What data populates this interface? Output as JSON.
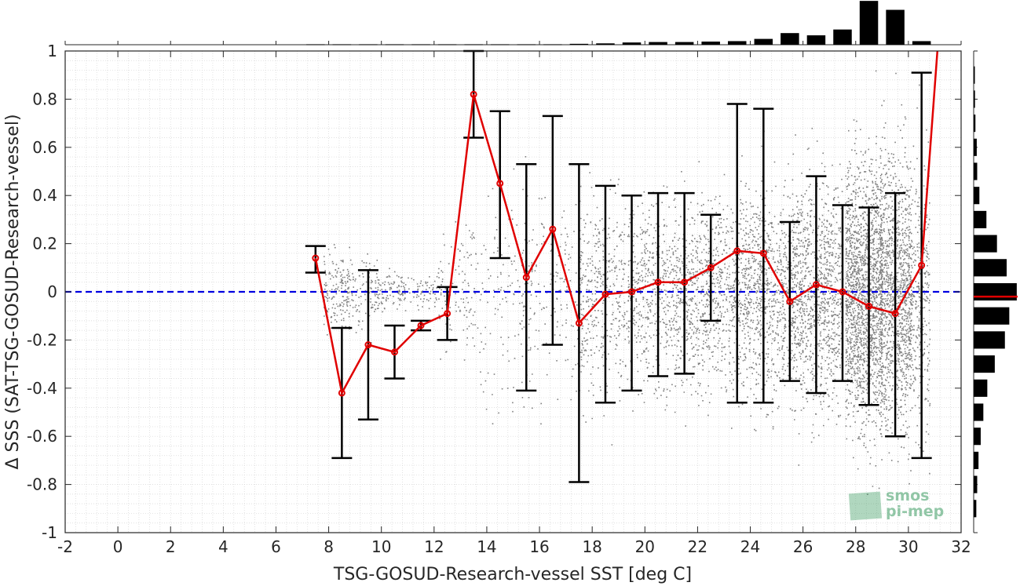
{
  "chart_data": {
    "type": "scatter",
    "xlabel": "TSG-GOSUD-Research-vessel SST [deg C]",
    "ylabel": "Δ SSS (SAT-TSG-GOSUD-Research-vessel)",
    "xlim": [
      -2,
      32
    ],
    "ylim": [
      -1,
      1
    ],
    "x_ticks": [
      -2,
      0,
      2,
      4,
      6,
      8,
      10,
      12,
      14,
      16,
      18,
      20,
      22,
      24,
      26,
      28,
      30,
      32
    ],
    "y_ticks": [
      -1,
      -0.8,
      -0.6,
      -0.4,
      -0.2,
      0,
      0.2,
      0.4,
      0.6,
      0.8,
      1
    ],
    "x_tick_labels": [
      "-2",
      "0",
      "2",
      "4",
      "6",
      "8",
      "10",
      "12",
      "14",
      "16",
      "18",
      "20",
      "22",
      "24",
      "26",
      "28",
      "30",
      "32"
    ],
    "y_tick_labels": [
      "-1",
      "-0.8",
      "-0.6",
      "-0.4",
      "-0.2",
      "0",
      "0.2",
      "0.4",
      "0.6",
      "0.8",
      "1"
    ],
    "grid": "minor dotted",
    "zero_line": {
      "y": 0,
      "style": "dashed",
      "color": "#0000e0"
    },
    "binned_mean": {
      "color": "#e00000",
      "x": [
        7.5,
        8.5,
        9.5,
        10.5,
        11.5,
        12.5,
        13.5,
        14.5,
        15.5,
        16.5,
        17.5,
        18.5,
        19.5,
        20.5,
        21.5,
        22.5,
        23.5,
        24.5,
        25.5,
        26.5,
        27.5,
        28.5,
        29.5,
        30.5,
        31.1
      ],
      "y": [
        0.14,
        -0.42,
        -0.22,
        -0.25,
        -0.14,
        -0.09,
        0.82,
        0.45,
        0.06,
        0.26,
        -0.13,
        -0.01,
        0.0,
        0.04,
        0.04,
        0.1,
        0.17,
        0.16,
        -0.04,
        0.03,
        0.0,
        -0.06,
        -0.09,
        0.11,
        1.0
      ]
    },
    "error_bars": {
      "color": "#000000",
      "x": [
        7.5,
        8.5,
        9.5,
        10.5,
        11.5,
        12.5,
        13.5,
        14.5,
        15.5,
        16.5,
        17.5,
        18.5,
        19.5,
        20.5,
        21.5,
        22.5,
        23.5,
        24.5,
        25.5,
        26.5,
        27.5,
        28.5,
        29.5,
        30.5
      ],
      "lower": [
        0.08,
        -0.69,
        -0.53,
        -0.36,
        -0.16,
        -0.2,
        0.64,
        0.14,
        -0.41,
        -0.22,
        -0.79,
        -0.46,
        -0.41,
        -0.35,
        -0.34,
        -0.12,
        -0.46,
        -0.46,
        -0.37,
        -0.42,
        -0.37,
        -0.47,
        -0.6,
        -0.69
      ],
      "upper": [
        0.19,
        -0.15,
        0.09,
        -0.14,
        -0.12,
        0.02,
        1.0,
        0.75,
        0.53,
        0.73,
        0.53,
        0.44,
        0.4,
        0.41,
        0.41,
        0.32,
        0.78,
        0.76,
        0.29,
        0.48,
        0.36,
        0.35,
        0.41,
        0.91
      ]
    },
    "scatter_color": "#808080",
    "hist_top": {
      "bins": [
        7.5,
        8.5,
        9.5,
        10.5,
        11.5,
        12.5,
        13.5,
        14.5,
        15.5,
        16.5,
        17.5,
        18.5,
        19.5,
        20.5,
        21.5,
        22.5,
        23.5,
        24.5,
        25.5,
        26.5,
        27.5,
        28.5,
        29.5,
        30.5
      ],
      "counts": [
        0.01,
        0.01,
        0.01,
        0.01,
        0.01,
        0.01,
        0.01,
        0.01,
        0.01,
        0.01,
        0.02,
        0.03,
        0.05,
        0.06,
        0.06,
        0.07,
        0.08,
        0.13,
        0.26,
        0.21,
        0.34,
        0.98,
        0.78,
        0.08
      ]
    },
    "hist_right": {
      "bins": [
        0.9,
        0.8,
        0.7,
        0.6,
        0.5,
        0.4,
        0.3,
        0.2,
        0.1,
        0.0,
        -0.1,
        -0.2,
        -0.3,
        -0.4,
        -0.5,
        -0.6,
        -0.7,
        -0.8,
        -0.9
      ],
      "counts": [
        0.02,
        0.03,
        0.04,
        0.07,
        0.08,
        0.13,
        0.29,
        0.53,
        0.75,
        0.98,
        0.81,
        0.71,
        0.48,
        0.31,
        0.22,
        0.16,
        0.11,
        0.08,
        0.06
      ],
      "median_line": {
        "y": -0.02,
        "color": "#e00000"
      }
    },
    "watermark": [
      "smos",
      "pi-mep"
    ]
  }
}
